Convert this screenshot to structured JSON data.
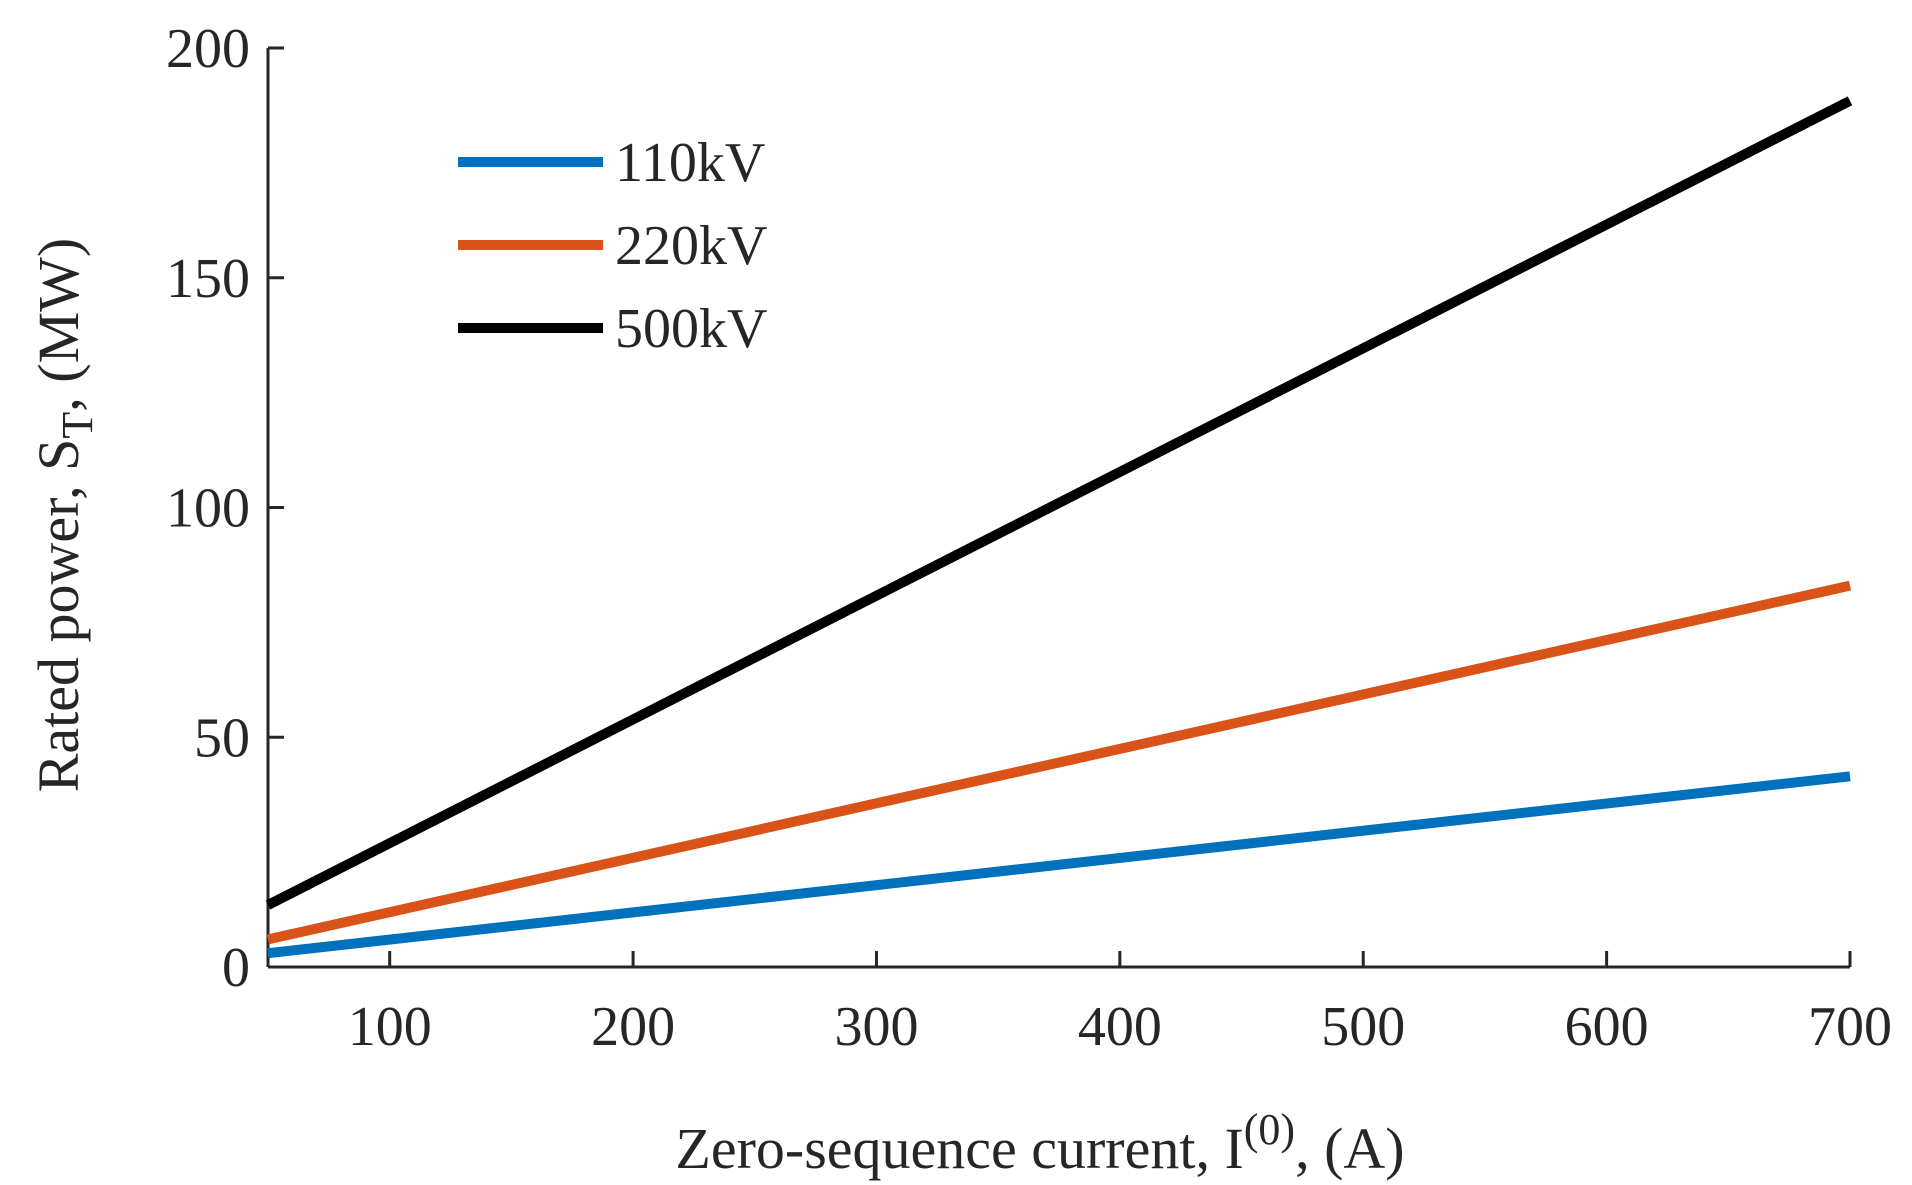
{
  "chart_data": {
    "type": "line",
    "title": "",
    "xlabel": {
      "main": "Zero-sequence current, I",
      "superscript": "(0)",
      "suffix": ", (A)"
    },
    "ylabel": {
      "main": "Rated power, S",
      "subscript": "T",
      "suffix": ", (MW)"
    },
    "xlim": [
      50,
      700
    ],
    "ylim": [
      0,
      200
    ],
    "xticks": [
      100,
      200,
      300,
      400,
      500,
      600,
      700
    ],
    "yticks": [
      0,
      50,
      100,
      150,
      200
    ],
    "grid": false,
    "legend_position": "top-left",
    "series": [
      {
        "name": "110kV",
        "color": "#0072BD",
        "x": [
          50,
          700
        ],
        "y": [
          3,
          41.5
        ]
      },
      {
        "name": "220kV",
        "color": "#D95319",
        "x": [
          50,
          700
        ],
        "y": [
          6,
          83
        ]
      },
      {
        "name": "500kV",
        "color": "#000000",
        "x": [
          50,
          700
        ],
        "y": [
          13.5,
          188.5
        ]
      }
    ]
  }
}
